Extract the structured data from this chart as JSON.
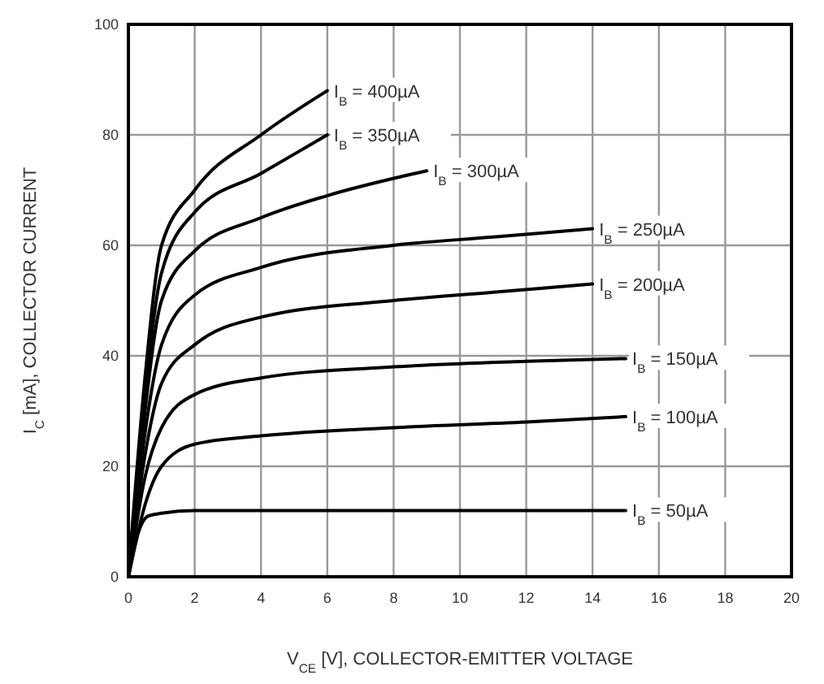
{
  "chart_data": {
    "type": "line",
    "xlabel": "V$_{CE}$ [V], COLLECTOR-EMITTER VOLTAGE",
    "ylabel": "I$_{C}$ [mA], COLLECTOR CURRENT",
    "xlim": [
      0,
      20
    ],
    "ylim": [
      0,
      100
    ],
    "xticks": [
      0,
      2,
      4,
      6,
      8,
      10,
      12,
      14,
      16,
      18,
      20
    ],
    "yticks": [
      0,
      20,
      40,
      60,
      80,
      100
    ],
    "grid": true,
    "marker": "none",
    "line_style": "solid",
    "series": [
      {
        "color": "#000000",
        "x": [
          0,
          0.3,
          0.6,
          1,
          2,
          4,
          8,
          15
        ],
        "values": [
          0,
          8,
          11,
          11.5,
          12,
          12,
          12,
          12
        ]
      },
      {
        "color": "#000000",
        "x": [
          0,
          0.5,
          1,
          2,
          4,
          8,
          12,
          15
        ],
        "values": [
          0,
          13,
          20,
          24,
          25.5,
          27,
          28,
          29
        ]
      },
      {
        "color": "#000000",
        "x": [
          0,
          0.5,
          1,
          2,
          4,
          8,
          12,
          15
        ],
        "values": [
          0,
          18,
          27,
          33,
          36,
          38,
          39,
          39.5
        ]
      },
      {
        "color": "#000000",
        "x": [
          0,
          0.5,
          1,
          2,
          4,
          8,
          11,
          14
        ],
        "values": [
          0,
          22,
          35,
          42,
          47,
          50,
          51.5,
          53
        ]
      },
      {
        "color": "#000000",
        "x": [
          0,
          0.5,
          1,
          2,
          4,
          8,
          11,
          14
        ],
        "values": [
          0,
          26,
          42,
          51,
          56,
          60,
          61.5,
          63
        ]
      },
      {
        "color": "#000000",
        "x": [
          0,
          0.5,
          1,
          2,
          4,
          6,
          9
        ],
        "values": [
          0,
          30,
          50,
          59,
          65,
          69,
          73.5
        ]
      },
      {
        "color": "#000000",
        "x": [
          0,
          0.5,
          1,
          2,
          4,
          6
        ],
        "values": [
          0,
          33,
          55,
          66,
          73,
          80
        ]
      },
      {
        "color": "#000000",
        "x": [
          0,
          0.5,
          1,
          2,
          4,
          6
        ],
        "values": [
          0,
          36,
          60,
          70,
          80,
          88
        ]
      }
    ],
    "annotations": [
      {
        "text": "I$_{B}$ = 50µA",
        "x": 15,
        "y": 12
      },
      {
        "text": "I$_{B}$ = 100µA",
        "x": 15,
        "y": 29
      },
      {
        "text": "I$_{B}$ = 150µA",
        "x": 15,
        "y": 39.5
      },
      {
        "text": "I$_{B}$ = 200µA",
        "x": 14,
        "y": 53
      },
      {
        "text": "I$_{B}$ = 250µA",
        "x": 14,
        "y": 63
      },
      {
        "text": "I$_{B}$ = 300µA",
        "x": 9,
        "y": 73.5
      },
      {
        "text": "I$_{B}$ = 350µA",
        "x": 6,
        "y": 80
      },
      {
        "text": "I$_{B}$ = 400µA",
        "x": 6,
        "y": 88
      }
    ]
  }
}
